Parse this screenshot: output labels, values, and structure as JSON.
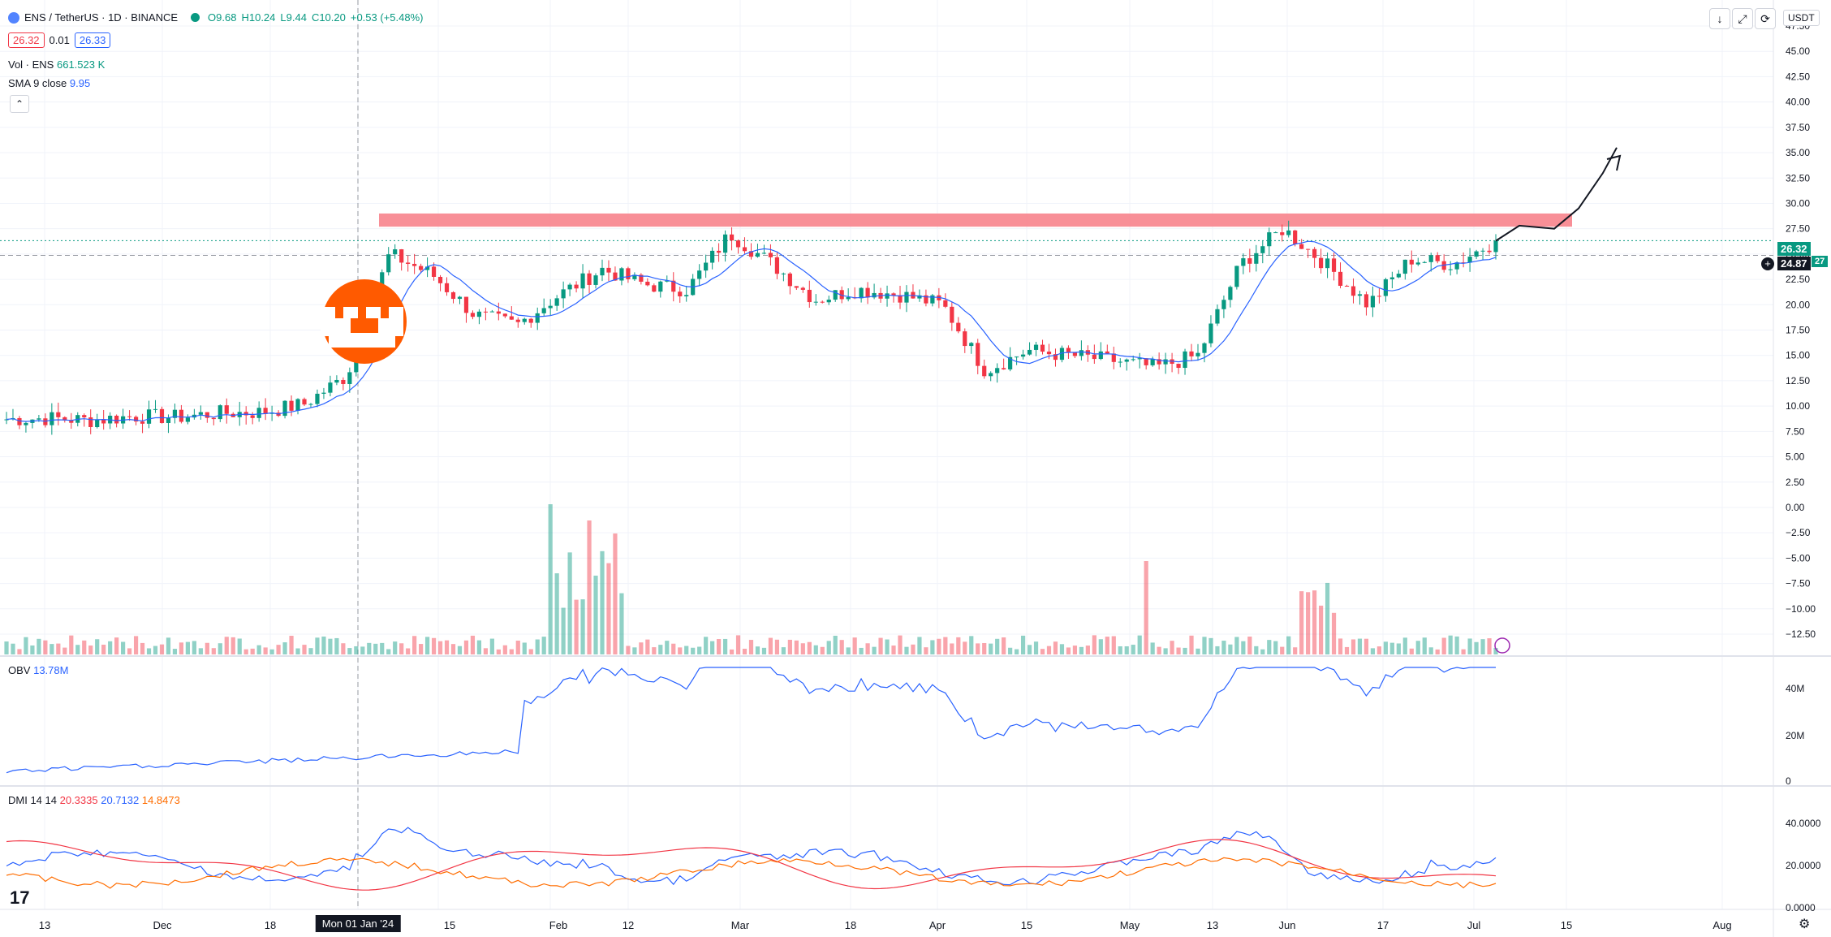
{
  "header": {
    "symbol": "ENS / TetherUS · 1D · BINANCE",
    "open": "O9.68",
    "high": "H10.24",
    "low": "L9.44",
    "close": "C10.20",
    "change": "+0.53 (+5.48%)",
    "sell_price": "26.32",
    "spread": "0.01",
    "buy_price": "26.33"
  },
  "indicators": {
    "vol": {
      "label": "Vol · ENS",
      "value": "661.523 K"
    },
    "sma": {
      "label": "SMA 9 close",
      "value": "9.95"
    },
    "obv": {
      "label": "OBV",
      "value": "13.78M"
    },
    "dmi": {
      "label": "DMI 14 14",
      "v1": "20.3335",
      "v2": "20.7132",
      "v3": "14.8473"
    }
  },
  "currency_button": "USDT",
  "price_labels": {
    "current": "26.32",
    "crosshair": "24.87",
    "countdown": "27"
  },
  "y_axis_main": [
    "47.50",
    "45.00",
    "42.50",
    "40.00",
    "37.50",
    "35.00",
    "32.50",
    "30.00",
    "27.50",
    "25.00",
    "22.50",
    "20.00",
    "17.50",
    "15.00",
    "12.50",
    "10.00",
    "7.50",
    "5.00",
    "2.50",
    "0.00",
    "−2.50",
    "−5.00",
    "−7.50",
    "−10.00",
    "−12.50"
  ],
  "y_axis_obv": [
    "40M",
    "20M",
    "0"
  ],
  "y_axis_dmi": [
    "40.0000",
    "20.0000",
    "0.0000"
  ],
  "x_axis": [
    "13",
    "Dec",
    "18",
    "Mon 01 Jan '24",
    "15",
    "Feb",
    "12",
    "Mar",
    "18",
    "Apr",
    "15",
    "May",
    "13",
    "Jun",
    "17",
    "Jul",
    "15",
    "Aug"
  ],
  "colors": {
    "up": "#089981",
    "down": "#f23645",
    "sma": "#2962ff",
    "resistance": "#f7838c",
    "dmi_plus": "#2962ff",
    "dmi_minus": "#f23645",
    "adx": "#ff6d00",
    "logo": "#ff5a00"
  },
  "icons": [
    "ens-symbol-icon",
    "market-status-dot",
    "collapse-icon",
    "down-arrow-icon",
    "expand-icon",
    "restore-icon",
    "close-icon",
    "add-alert-icon",
    "lightning-icon",
    "tradingview-logo-icon",
    "settings-gear-icon",
    "whale-logo-icon"
  ],
  "chart_data": {
    "type": "candlestick",
    "interval": "1D",
    "start_date": "2023-11-09",
    "ohlc_weekly_anchors": [
      8.7,
      8.8,
      8.6,
      9.0,
      8.9,
      9.3,
      9.4,
      10.2,
      13.0,
      25.0,
      23.0,
      19.0,
      18.0,
      21.0,
      23.5,
      22.0,
      21.5,
      27.0,
      24.0,
      20.5,
      21.5,
      21.0,
      20.0,
      13.5,
      15.5,
      15.0,
      14.5,
      13.8,
      15.0,
      24.0,
      27.5,
      24.0,
      20.0,
      24.5,
      24.0,
      26.3
    ],
    "resistance_zone": [
      27.7,
      29.0
    ],
    "projection_path": [
      [
        26.3,
        "2024-06-27"
      ],
      [
        27.8,
        "2024-07-01"
      ],
      [
        27.5,
        "2024-07-07"
      ],
      [
        29.5,
        "2024-07-10"
      ],
      [
        35.5,
        "2024-07-15"
      ]
    ],
    "ylim": [
      -13.5,
      48
    ]
  }
}
